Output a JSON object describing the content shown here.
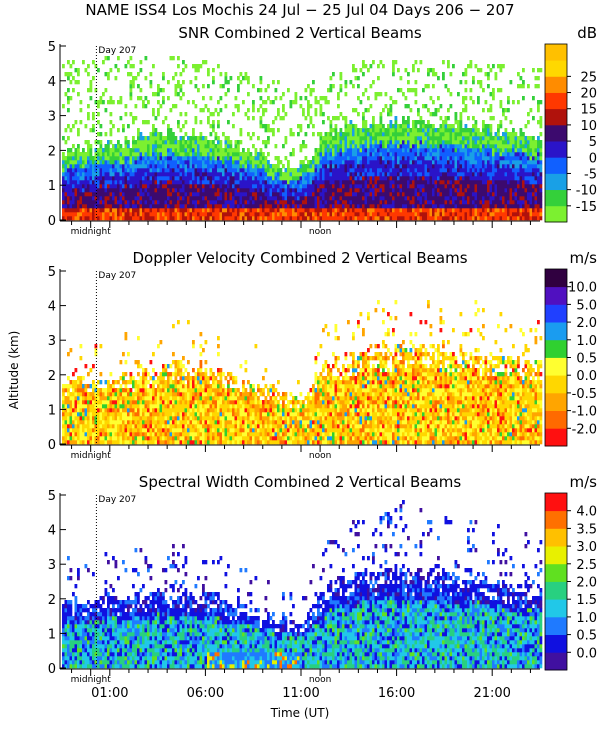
{
  "figure": {
    "title": "NAME ISS4 Los Mochis  24 Jul − 25 Jul 04 Days 206 − 207",
    "xlabel": "Time (UT)",
    "ylabel": "Altitude (km)"
  },
  "chart_data": [
    {
      "type": "heatmap",
      "title": "SNR Combined 2 Vertical Beams",
      "units": "dB",
      "day_label": "Day 207",
      "y_ticks": [
        "0",
        "1",
        "2",
        "3",
        "4",
        "5"
      ],
      "ylim": [
        0,
        5
      ],
      "xlim": [
        22.5,
        47.5
      ],
      "x_markers": [
        "midnight",
        "noon"
      ],
      "colorbar_labels": [
        "-15",
        "-10",
        "-5",
        "0",
        "5",
        "10",
        "15",
        "20",
        "25"
      ],
      "colorbar_colors": [
        "#7cf030",
        "#34d03a",
        "#19a0e6",
        "#1060ff",
        "#2a14c8",
        "#3c0a6e",
        "#b0120c",
        "#ff3800",
        "#ff8c00",
        "#ffd800",
        "#ffc000"
      ],
      "profile": {
        "hours": [
          22.5,
          24,
          26,
          28,
          30,
          32,
          34,
          35,
          36,
          38,
          40,
          42,
          44,
          46,
          47.5
        ],
        "signal_top_km": [
          2.0,
          2.1,
          2.3,
          2.6,
          2.5,
          2.1,
          1.6,
          1.5,
          2.5,
          2.8,
          2.9,
          2.8,
          2.7,
          2.6,
          2.4
        ],
        "noise_top_km": [
          4.6,
          4.7,
          4.8,
          4.8,
          4.6,
          4.4,
          4.0,
          3.8,
          4.3,
          4.6,
          4.7,
          4.7,
          4.6,
          4.5,
          4.4
        ]
      }
    },
    {
      "type": "heatmap",
      "title": "Doppler Velocity Combined 2 Vertical Beams",
      "units": "m/s",
      "day_label": "Day 207",
      "y_ticks": [
        "0",
        "1",
        "2",
        "3",
        "4",
        "5"
      ],
      "ylim": [
        0,
        5
      ],
      "xlim": [
        22.5,
        47.5
      ],
      "x_markers": [
        "midnight",
        "noon"
      ],
      "colorbar_labels": [
        "-2.0",
        "-1.0",
        "-0.5",
        "0.0",
        "0.5",
        "1.0",
        "2.0",
        "5.0",
        "10.0"
      ],
      "colorbar_colors": [
        "#ff1010",
        "#ff6a00",
        "#ffa500",
        "#ffd700",
        "#ffff30",
        "#30d030",
        "#1a9cf0",
        "#2040ff",
        "#5010c0",
        "#300040"
      ],
      "profile": {
        "hours": [
          22.5,
          24,
          26,
          28,
          30,
          32,
          34,
          35,
          36,
          38,
          40,
          42,
          44,
          46,
          47.5
        ],
        "signal_top_km": [
          1.9,
          2.0,
          2.1,
          2.4,
          2.3,
          1.9,
          1.5,
          1.4,
          2.2,
          2.7,
          2.8,
          2.8,
          2.7,
          2.5,
          2.3
        ]
      }
    },
    {
      "type": "heatmap",
      "title": "Spectral Width Combined 2 Vertical Beams",
      "units": "m/s",
      "day_label": "Day 207",
      "y_ticks": [
        "0",
        "1",
        "2",
        "3",
        "4",
        "5"
      ],
      "ylim": [
        0,
        5
      ],
      "xlim": [
        22.5,
        47.5
      ],
      "x_ticks": [
        "01:00",
        "06:00",
        "11:00",
        "16:00",
        "21:00"
      ],
      "x_markers": [
        "midnight",
        "noon"
      ],
      "colorbar_labels": [
        "0.0",
        "0.5",
        "1.0",
        "1.5",
        "2.0",
        "2.5",
        "3.0",
        "3.5",
        "4.0"
      ],
      "colorbar_colors": [
        "#4010a0",
        "#1010e0",
        "#1f7aff",
        "#21c8e8",
        "#28d080",
        "#60e020",
        "#e8f000",
        "#ffc000",
        "#ff7000",
        "#ff1010"
      ],
      "profile": {
        "hours": [
          22.5,
          24,
          26,
          28,
          30,
          32,
          34,
          35,
          36,
          38,
          40,
          42,
          44,
          46,
          47.5
        ],
        "signal_top_km": [
          1.9,
          2.0,
          2.1,
          2.3,
          2.2,
          1.8,
          1.4,
          1.3,
          2.3,
          2.8,
          2.9,
          2.8,
          2.7,
          2.5,
          2.3
        ]
      }
    }
  ]
}
